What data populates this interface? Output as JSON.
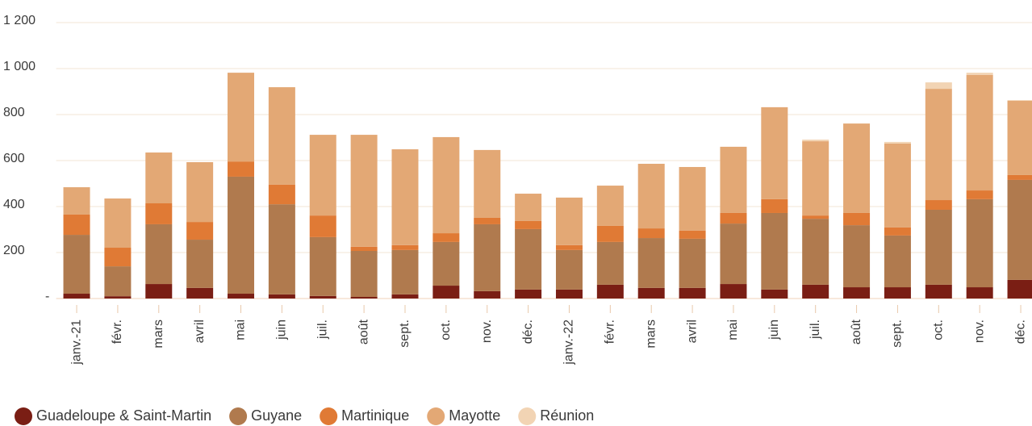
{
  "chart_data": {
    "type": "bar",
    "stacked": true,
    "categories": [
      "janv.-21",
      "févr.",
      "mars",
      "avril",
      "mai",
      "juin",
      "juil.",
      "août",
      "sept.",
      "oct.",
      "nov.",
      "déc.",
      "janv.-22",
      "févr.",
      "mars",
      "avril",
      "mai",
      "juin",
      "juil.",
      "août",
      "sept.",
      "oct.",
      "nov.",
      "déc."
    ],
    "series": [
      {
        "name": "Guadeloupe & Saint-Martin",
        "color": "#7a1e14",
        "values": [
          21,
          10,
          63,
          46,
          21,
          18,
          11,
          7,
          18,
          56,
          32,
          39,
          39,
          60,
          46,
          46,
          63,
          39,
          60,
          49,
          49,
          60,
          49,
          81
        ]
      },
      {
        "name": "Guyane",
        "color": "#b07a4e",
        "values": [
          256,
          130,
          260,
          210,
          509,
          392,
          256,
          200,
          193,
          190,
          291,
          263,
          172,
          186,
          217,
          214,
          263,
          333,
          287,
          270,
          225,
          326,
          383,
          435
        ]
      },
      {
        "name": "Martinique",
        "color": "#e07a35",
        "values": [
          88,
          81,
          91,
          77,
          66,
          85,
          94,
          18,
          21,
          38,
          28,
          35,
          21,
          70,
          42,
          35,
          46,
          60,
          14,
          53,
          35,
          42,
          38,
          21
        ]
      },
      {
        "name": "Mayotte",
        "color": "#e3a875",
        "values": [
          119,
          214,
          221,
          260,
          386,
          424,
          351,
          487,
          417,
          418,
          295,
          119,
          207,
          175,
          281,
          277,
          288,
          400,
          323,
          389,
          365,
          484,
          502,
          323
        ]
      },
      {
        "name": "Réunion",
        "color": "#f2d4b4",
        "values": [
          0,
          0,
          0,
          0,
          0,
          0,
          0,
          0,
          0,
          0,
          0,
          0,
          0,
          0,
          0,
          0,
          0,
          0,
          7,
          0,
          7,
          28,
          10,
          3
        ]
      }
    ],
    "ylim": [
      0,
      1200
    ],
    "yticks": [
      {
        "value": 0,
        "label": "-"
      },
      200,
      400,
      600,
      800,
      {
        "value": 1000,
        "label": "1 000"
      },
      {
        "value": 1200,
        "label": "1 200"
      }
    ],
    "grid": true,
    "legend": "bottom"
  }
}
